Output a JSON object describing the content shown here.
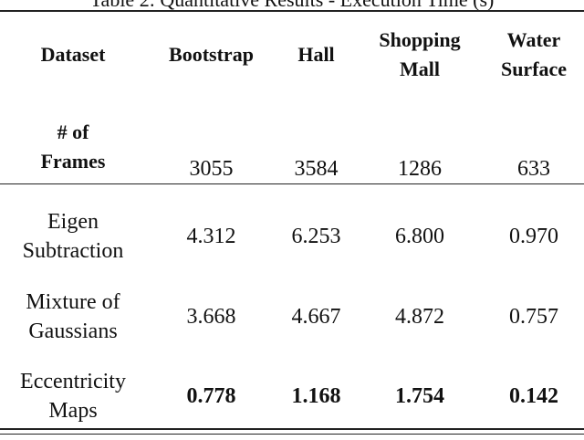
{
  "caption": "Table 2: Quantitative Results - Execution Time (s)",
  "table": {
    "header": {
      "dataset": "Dataset",
      "columns": [
        {
          "line1": "Bootstrap",
          "line2": ""
        },
        {
          "line1": "Hall",
          "line2": ""
        },
        {
          "line1": "Shopping",
          "line2": "Mall"
        },
        {
          "line1": "Water",
          "line2": "Surface"
        }
      ]
    },
    "frames_row": {
      "label_line1": "# of",
      "label_line2": "Frames",
      "values": [
        "3055",
        "3584",
        "1286",
        "633"
      ]
    },
    "rows": [
      {
        "label_line1": "Eigen",
        "label_line2": "Subtraction",
        "values": [
          "4.312",
          "6.253",
          "6.800",
          "0.970"
        ]
      },
      {
        "label_line1": "Mixture of",
        "label_line2": "Gaussians",
        "values": [
          "3.668",
          "4.667",
          "4.872",
          "0.757"
        ]
      },
      {
        "label_line1": "Eccentricity",
        "label_line2": "Maps",
        "values": [
          "0.778",
          "1.168",
          "1.754",
          "0.142"
        ]
      }
    ]
  }
}
